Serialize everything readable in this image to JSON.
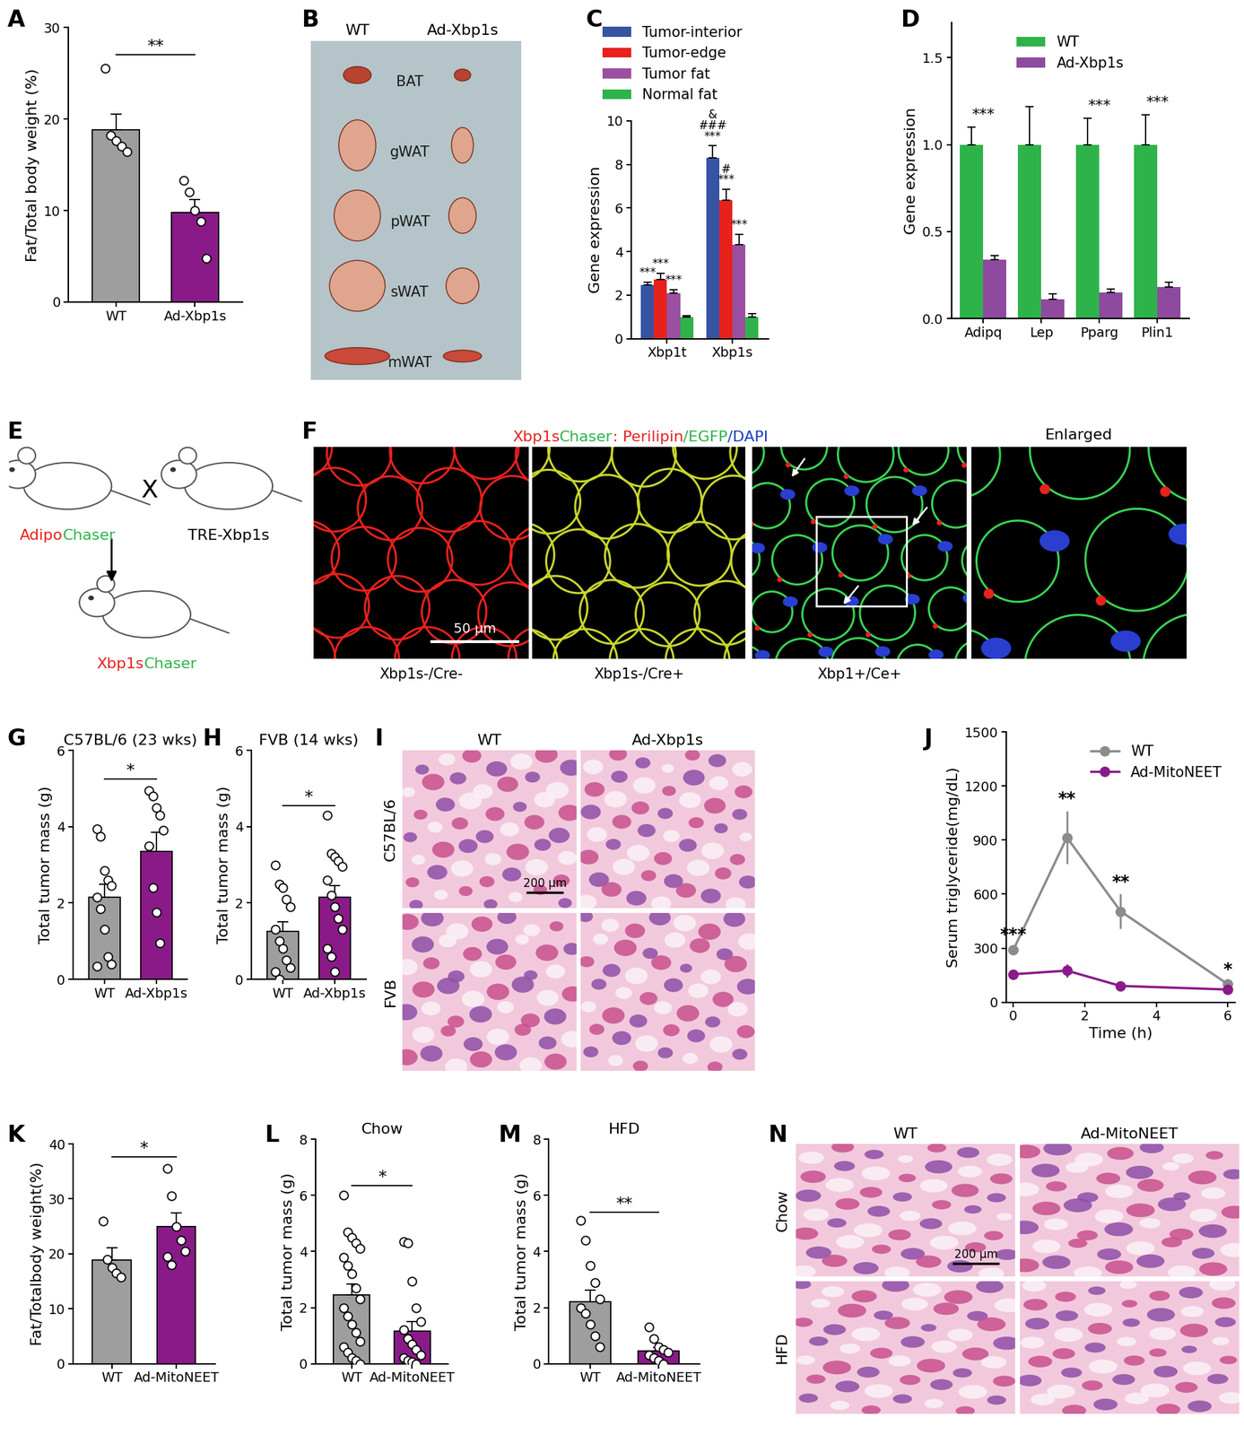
{
  "chart_data": [
    {
      "panel": "A",
      "type": "bar",
      "ylabel": "Fat/Total body weight (%)",
      "categories": [
        "WT",
        "Ad-Xbp1s"
      ],
      "values": [
        18.8,
        9.8
      ],
      "errors": [
        1.7,
        1.4
      ],
      "points": [
        [
          25.5,
          18.2,
          17.6,
          17.0,
          16.4
        ],
        [
          13.3,
          12.0,
          10.0,
          8.8,
          4.8
        ]
      ],
      "colors": [
        "#9e9e9e",
        "#8b1a89"
      ],
      "marker": "o",
      "ylim": [
        0,
        30
      ],
      "yticks": [
        0,
        10,
        20,
        30
      ],
      "annotation": "**"
    },
    {
      "panel": "C",
      "type": "grouped_bar",
      "ylabel": "Gene expression",
      "categories": [
        "Xbp1t",
        "Xbp1s"
      ],
      "series": [
        {
          "name": "Tumor-interior",
          "color": "#3653a4",
          "values": [
            2.45,
            8.3
          ],
          "errors": [
            0.15,
            0.55
          ],
          "annotations": [
            [
              "***"
            ],
            [
              "&",
              "###",
              "***"
            ]
          ]
        },
        {
          "name": "Tumor-edge",
          "color": "#e8211d",
          "values": [
            2.7,
            6.35
          ],
          "errors": [
            0.3,
            0.5
          ],
          "annotations": [
            [
              "***"
            ],
            [
              "#",
              "***"
            ]
          ]
        },
        {
          "name": "Tumor fat",
          "color": "#9b4fa0",
          "values": [
            2.1,
            4.3
          ],
          "errors": [
            0.15,
            0.5
          ],
          "annotations": [
            [
              "***"
            ],
            [
              "***"
            ]
          ]
        },
        {
          "name": "Normal fat",
          "color": "#2eb34a",
          "values": [
            1.0,
            1.0
          ],
          "errors": [
            0.05,
            0.15
          ],
          "annotations": [
            [],
            []
          ]
        }
      ],
      "ylim": [
        0,
        10
      ],
      "yticks": [
        0,
        2,
        4,
        6,
        8,
        10
      ],
      "legend": "lower left"
    },
    {
      "panel": "D",
      "type": "grouped_bar",
      "ylabel": "Gene expression",
      "categories": [
        "Adipq",
        "Lep",
        "Pparg",
        "Plin1"
      ],
      "series": [
        {
          "name": "WT",
          "color": "#2eb34a",
          "values": [
            1.0,
            1.0,
            1.0,
            1.0
          ],
          "errors": [
            0.1,
            0.22,
            0.15,
            0.17
          ]
        },
        {
          "name": "Ad-Xbp1s",
          "color": "#8e4a9e",
          "values": [
            0.34,
            0.11,
            0.15,
            0.18
          ],
          "errors": [
            0.02,
            0.03,
            0.02,
            0.03
          ]
        }
      ],
      "annotations": [
        "***",
        null,
        "***",
        "***"
      ],
      "ylim": [
        0,
        1.7
      ],
      "yticks": [
        0.0,
        0.5,
        1.0,
        1.5
      ],
      "legend": "upper center"
    },
    {
      "panel": "G",
      "type": "bar",
      "title": "C57BL/6 (23 wks)",
      "ylabel": "Total tumor mass (g)",
      "categories": [
        "WT",
        "Ad-Xbp1s"
      ],
      "values": [
        2.15,
        3.35
      ],
      "errors": [
        0.35,
        0.5
      ],
      "points": [
        [
          3.95,
          3.75,
          2.85,
          2.6,
          2.45,
          2.15,
          1.85,
          1.3,
          0.6,
          0.4,
          0.35
        ],
        [
          4.95,
          4.8,
          4.5,
          4.3,
          3.9,
          3.5,
          2.4,
          1.75,
          0.95
        ]
      ],
      "colors": [
        "#9e9e9e",
        "#8b1a89"
      ],
      "marker": "o",
      "ylim": [
        0,
        6
      ],
      "yticks": [
        0,
        2,
        4,
        6
      ],
      "annotation": "*"
    },
    {
      "panel": "H",
      "type": "bar",
      "title": "FVB (14 wks)",
      "ylabel": "Total tumor mass (g)",
      "categories": [
        "WT",
        "Ad-Xbp1s"
      ],
      "values": [
        1.25,
        2.15
      ],
      "errors": [
        0.25,
        0.3
      ],
      "points": [
        [
          3.0,
          2.5,
          2.4,
          2.1,
          1.9,
          1.3,
          1.0,
          0.8,
          0.5,
          0.3,
          0.2,
          0.0
        ],
        [
          4.3,
          3.3,
          3.2,
          3.1,
          2.95,
          2.6,
          2.2,
          1.9,
          1.6,
          1.3,
          0.8,
          0.6,
          0.2
        ]
      ],
      "colors": [
        "#9e9e9e",
        "#8b1a89"
      ],
      "marker": "o",
      "ylim": [
        0,
        6
      ],
      "yticks": [
        0,
        2,
        4,
        6
      ],
      "annotation": "*"
    },
    {
      "panel": "J",
      "type": "line",
      "xlabel": "Time (h)",
      "ylabel": "Serum triglyceride(mg/dL)",
      "x": [
        0,
        1.5,
        3,
        6
      ],
      "series": [
        {
          "name": "WT",
          "color": "#8c8c8c",
          "values": [
            290,
            915,
            505,
            100
          ],
          "errors": [
            15,
            145,
            95,
            12
          ],
          "marker": "o"
        },
        {
          "name": "Ad-MitoNEET",
          "color": "#8b1a89",
          "values": [
            155,
            175,
            90,
            70
          ],
          "errors": [
            12,
            35,
            12,
            6
          ],
          "marker": "o"
        }
      ],
      "annotations": [
        "***",
        "**",
        "**",
        "*"
      ],
      "xlim": [
        -0.2,
        6.2
      ],
      "xticks": [
        0,
        2,
        4,
        6
      ],
      "ylim": [
        0,
        1500
      ],
      "yticks": [
        0,
        300,
        600,
        900,
        1200,
        1500
      ],
      "legend": "upper right"
    },
    {
      "panel": "K",
      "type": "bar",
      "ylabel": "Fat/Totalbody weight(%)",
      "categories": [
        "WT",
        "Ad-MitoNEET"
      ],
      "values": [
        18.8,
        25.0
      ],
      "errors": [
        2.3,
        2.5
      ],
      "points": [
        [
          26.0,
          19.0,
          17.5,
          16.5,
          15.8
        ],
        [
          35.5,
          30.5,
          25.0,
          22.5,
          20.5,
          19.5,
          18.0
        ]
      ],
      "colors": [
        "#9e9e9e",
        "#8b1a89"
      ],
      "marker": "o",
      "ylim": [
        0,
        40
      ],
      "yticks": [
        0,
        10,
        20,
        30,
        40
      ],
      "annotation": "*"
    },
    {
      "panel": "L",
      "type": "bar",
      "title": "Chow",
      "ylabel": "Total tumor mass (g)",
      "categories": [
        "WT",
        "Ad-MitoNEET"
      ],
      "values": [
        2.45,
        1.15
      ],
      "errors": [
        0.4,
        0.35
      ],
      "points": [
        [
          6.0,
          4.7,
          4.5,
          4.3,
          4.1,
          3.8,
          3.5,
          3.2,
          2.7,
          2.3,
          2.0,
          1.7,
          1.4,
          1.1,
          0.8,
          0.6,
          0.4,
          0.2,
          0.1,
          0.0
        ],
        [
          4.35,
          4.3,
          2.95,
          2.0,
          1.5,
          1.2,
          0.9,
          0.7,
          0.5,
          0.3,
          0.2,
          0.1,
          0.05,
          0.0
        ]
      ],
      "colors": [
        "#9e9e9e",
        "#8b1a89"
      ],
      "marker": "o",
      "ylim": [
        0,
        8
      ],
      "yticks": [
        0,
        2,
        4,
        6,
        8
      ],
      "annotation": "*"
    },
    {
      "panel": "M",
      "type": "bar",
      "title": "HFD",
      "ylabel": "Total tumor mass (g)",
      "categories": [
        "WT",
        "Ad-MitoNEET"
      ],
      "values": [
        2.2,
        0.45
      ],
      "errors": [
        0.42,
        0.12
      ],
      "points": [
        [
          5.1,
          4.4,
          3.5,
          2.9,
          2.3,
          2.0,
          1.8,
          1.4,
          1.0,
          0.6
        ],
        [
          1.3,
          0.9,
          0.6,
          0.5,
          0.4,
          0.3,
          0.2,
          0.1,
          0.0
        ]
      ],
      "colors": [
        "#9e9e9e",
        "#8b1a89"
      ],
      "marker": "o",
      "ylim": [
        0,
        8
      ],
      "yticks": [
        0,
        2,
        4,
        6,
        8
      ],
      "annotation": "**"
    }
  ],
  "images": [
    {
      "panel": "B",
      "type": "photo",
      "column_labels": [
        "WT",
        "Ad-Xbp1s"
      ],
      "tissue_labels": [
        "BAT",
        "gWAT",
        "pWAT",
        "sWAT",
        "mWAT"
      ]
    },
    {
      "panel": "E",
      "type": "schematic",
      "parents": [
        [
          {
            "text": "Adipo",
            "color": "#e8211d"
          },
          {
            "text": "Chaser",
            "color": "#2eb34a"
          }
        ],
        [
          {
            "text": "TRE-Xbp1s",
            "color": "#000000"
          }
        ]
      ],
      "cross": "X",
      "offspring": [
        {
          "text": "Xbp1s",
          "color": "#e8211d"
        },
        {
          "text": "Chaser",
          "color": "#2eb34a"
        }
      ]
    },
    {
      "panel": "F",
      "type": "micrograph",
      "title_parts": [
        {
          "text": "Xbp1s",
          "color": "#e8211d"
        },
        {
          "text": "Chaser",
          "color": "#2eb34a"
        },
        {
          "text": ": Perilipin",
          "color": "#e8211d"
        },
        {
          "text": "/EGFP",
          "color": "#2eb34a"
        },
        {
          "text": "/DAPI",
          "color": "#1f3fbf"
        }
      ],
      "captions": [
        "Xbp1s-/Cre-",
        "Xbp1s-/Cre+",
        "Xbp1+/Ce+"
      ],
      "inset_label": "Enlarged",
      "scale_bar": "50 μm"
    },
    {
      "panel": "I",
      "type": "histology",
      "column_labels": [
        "WT",
        "Ad-Xbp1s"
      ],
      "row_labels": [
        "C57BL/6",
        "FVB"
      ],
      "scale_bar": "200 μm"
    },
    {
      "panel": "N",
      "type": "histology",
      "column_labels": [
        "WT",
        "Ad-MitoNEET"
      ],
      "row_labels": [
        "Chow",
        "HFD"
      ],
      "scale_bar": "200 μm"
    }
  ]
}
